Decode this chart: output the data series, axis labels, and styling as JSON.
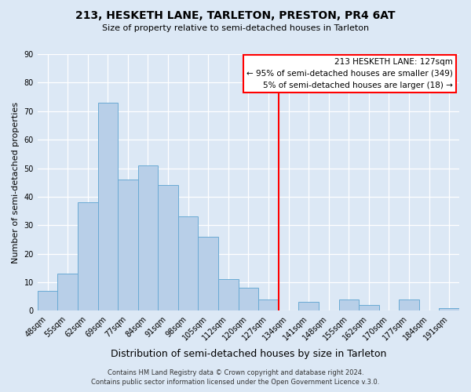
{
  "title": "213, HESKETH LANE, TARLETON, PRESTON, PR4 6AT",
  "subtitle": "Size of property relative to semi-detached houses in Tarleton",
  "xlabel": "Distribution of semi-detached houses by size in Tarleton",
  "ylabel": "Number of semi-detached properties",
  "categories": [
    "48sqm",
    "55sqm",
    "62sqm",
    "69sqm",
    "77sqm",
    "84sqm",
    "91sqm",
    "98sqm",
    "105sqm",
    "112sqm",
    "120sqm",
    "127sqm",
    "134sqm",
    "141sqm",
    "148sqm",
    "155sqm",
    "162sqm",
    "170sqm",
    "177sqm",
    "184sqm",
    "191sqm"
  ],
  "values": [
    7,
    13,
    38,
    73,
    46,
    51,
    44,
    33,
    26,
    11,
    8,
    4,
    0,
    3,
    0,
    4,
    2,
    0,
    4,
    0,
    1
  ],
  "bar_color": "#b8cfe8",
  "bar_edge_color": "#6aaad4",
  "vline_x_index": 11,
  "vline_color": "red",
  "ylim": [
    0,
    90
  ],
  "yticks": [
    0,
    10,
    20,
    30,
    40,
    50,
    60,
    70,
    80,
    90
  ],
  "annotation_title": "213 HESKETH LANE: 127sqm",
  "annotation_line1": "← 95% of semi-detached houses are smaller (349)",
  "annotation_line2": "5% of semi-detached houses are larger (18) →",
  "annotation_box_facecolor": "white",
  "annotation_box_edgecolor": "red",
  "footer1": "Contains HM Land Registry data © Crown copyright and database right 2024.",
  "footer2": "Contains public sector information licensed under the Open Government Licence v.3.0.",
  "background_color": "#dce8f5",
  "grid_color": "#ffffff",
  "title_fontsize": 10,
  "subtitle_fontsize": 8,
  "xlabel_fontsize": 9,
  "ylabel_fontsize": 8,
  "tick_fontsize": 7,
  "annot_fontsize": 7.5,
  "footer_fontsize": 6
}
